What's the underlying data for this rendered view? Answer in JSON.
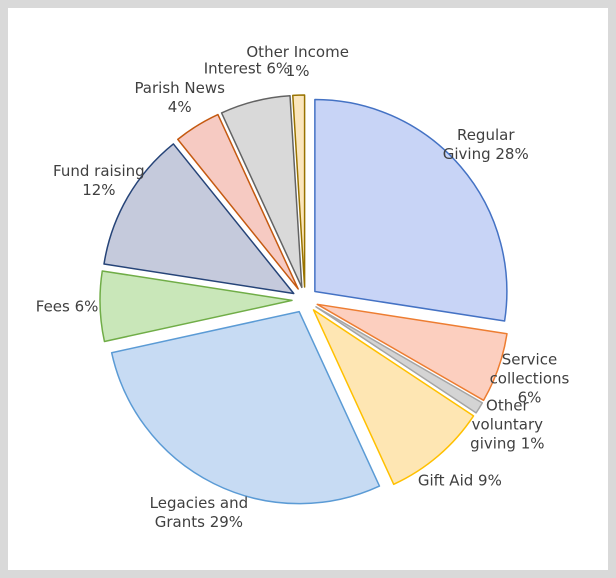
{
  "chart_data": {
    "type": "pie",
    "categories": [
      "Regular Giving",
      "Service collections",
      "Other voluntary giving",
      "Gift Aid",
      "Legacies and Grants",
      "Fees",
      "Fund raising",
      "Parish News",
      "Interest",
      "Other Income"
    ],
    "values": [
      28,
      6,
      1,
      9,
      29,
      6,
      12,
      4,
      6,
      1
    ],
    "value_labels": [
      "28%",
      "6%",
      "1%",
      "9%",
      "29%",
      "6%",
      "12%",
      "4%",
      "6%",
      "1%"
    ],
    "colors": [
      "#c8d4f6",
      "#fccfbf",
      "#d4d4d4",
      "#fee6b3",
      "#c7dbf3",
      "#c9e7b9",
      "#c5cadc",
      "#f6cac2",
      "#d9d9d9",
      "#fbe6bd"
    ],
    "edge_colors": [
      "#4472c4",
      "#ed7d31",
      "#a5a5a5",
      "#ffc000",
      "#5b9bd5",
      "#70ad47",
      "#264478",
      "#c55a11",
      "#636363",
      "#997300"
    ]
  }
}
